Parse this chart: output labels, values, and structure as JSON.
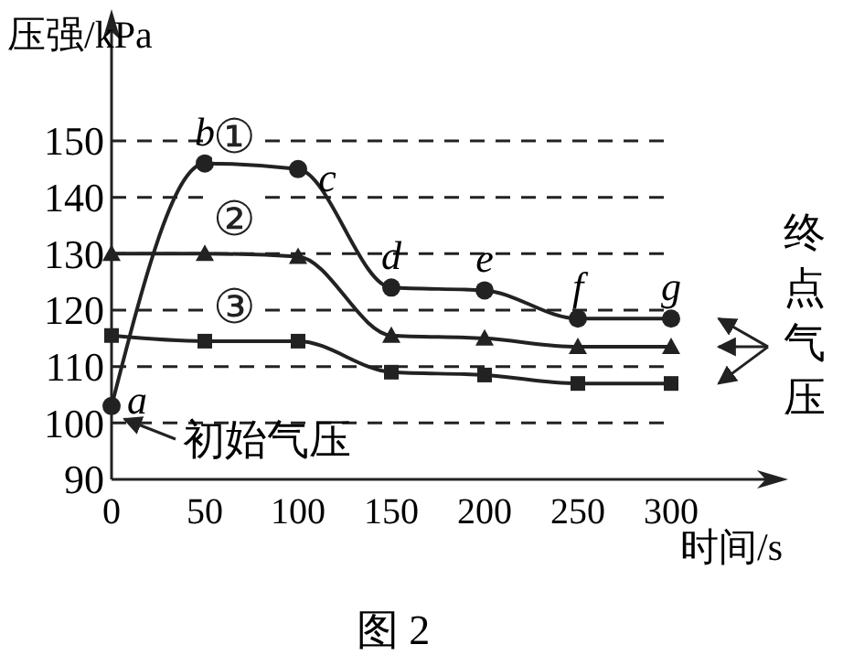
{
  "chart_data": {
    "type": "line",
    "xlabel": "时间/s",
    "ylabel": "压强/kPa",
    "x": [
      0,
      50,
      100,
      150,
      200,
      250,
      300
    ],
    "xlim": [
      0,
      300
    ],
    "xticks": [
      0,
      50,
      100,
      150,
      200,
      250,
      300
    ],
    "ylim": [
      90,
      150
    ],
    "yticks": [
      90,
      100,
      110,
      120,
      130,
      140,
      150
    ],
    "grid": "y",
    "line_style": "solid",
    "series": [
      {
        "name": "①",
        "color": "#222222",
        "marker": "circle",
        "values": [
          103,
          146,
          145,
          124,
          123.5,
          118.5,
          118.5
        ]
      },
      {
        "name": "②",
        "color": "#222222",
        "marker": "triangle",
        "values": [
          130,
          130,
          129.5,
          115.5,
          115,
          113.5,
          113.5
        ]
      },
      {
        "name": "③",
        "color": "#222222",
        "marker": "square",
        "values": [
          115.5,
          114.5,
          114.5,
          109,
          108.5,
          107,
          107
        ]
      }
    ],
    "annotations": [
      {
        "text": "a",
        "x": 0,
        "y": 103
      },
      {
        "text": "b",
        "x": 50,
        "y": 146
      },
      {
        "text": "c",
        "x": 100,
        "y": 145
      },
      {
        "text": "d",
        "x": 150,
        "y": 124
      },
      {
        "text": "e",
        "x": 200,
        "y": 123.5
      },
      {
        "text": "f",
        "x": 250,
        "y": 118.5
      },
      {
        "text": "g",
        "x": 300,
        "y": 118.5
      },
      "初始气压",
      "终点气压",
      "图 2"
    ]
  }
}
